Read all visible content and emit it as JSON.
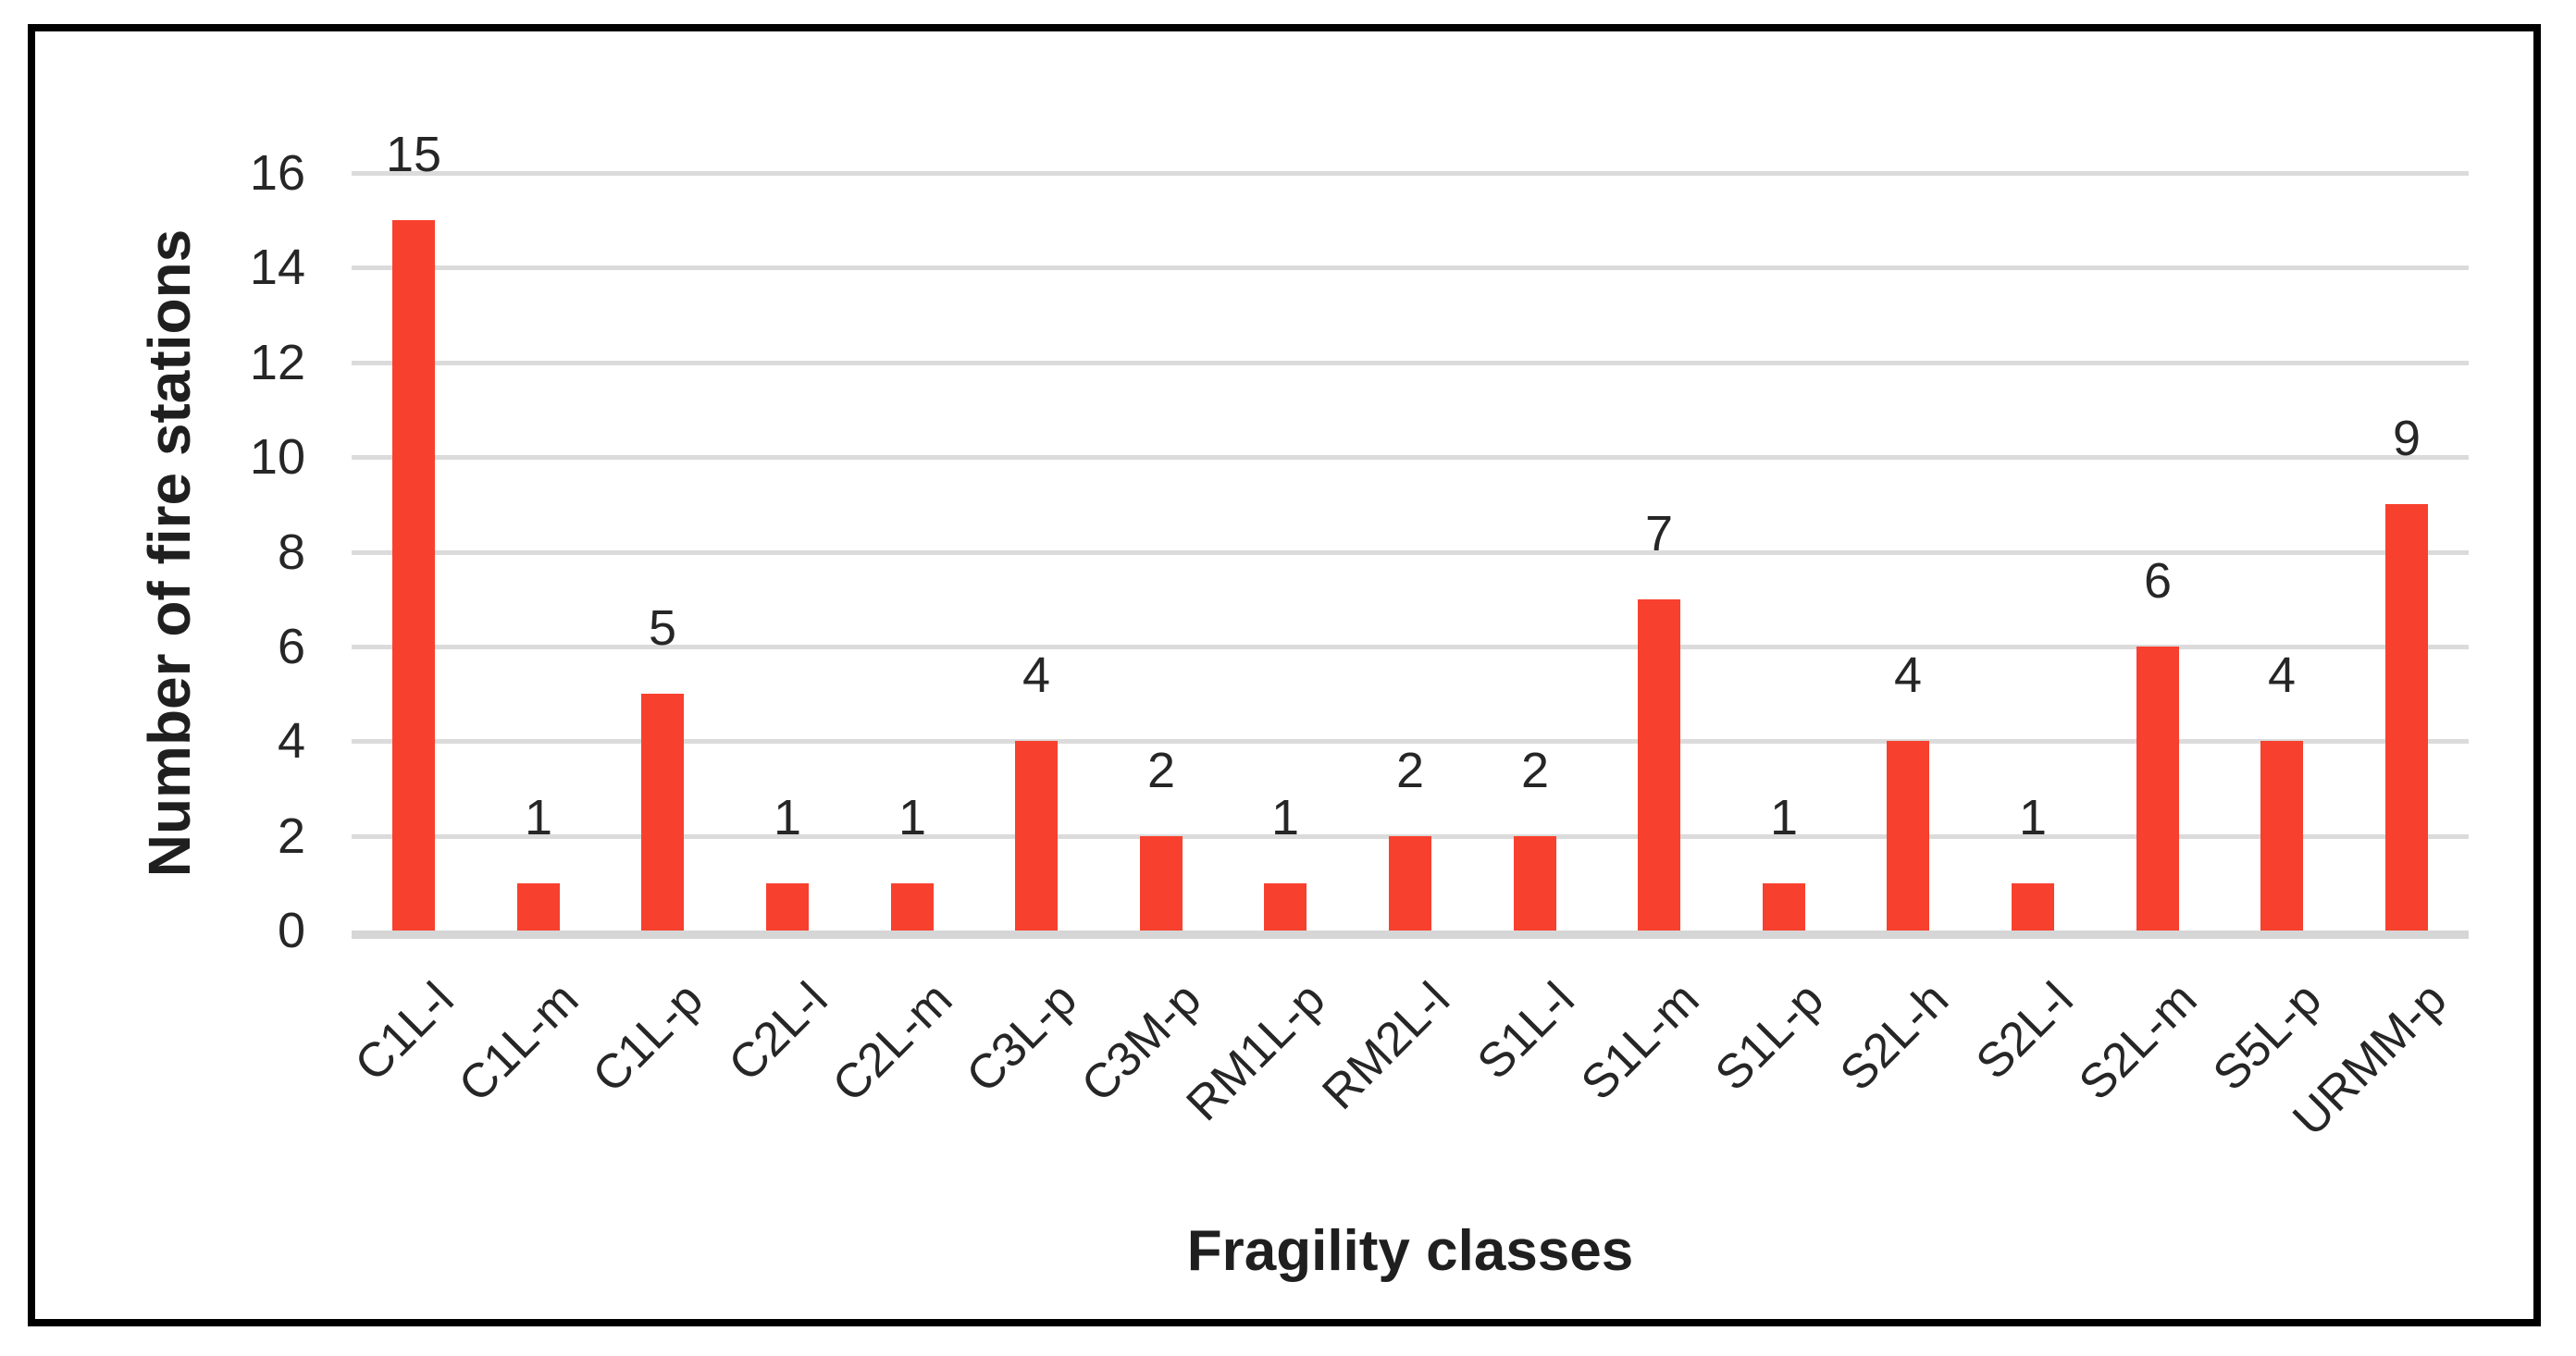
{
  "chart_data": {
    "type": "bar",
    "title": "",
    "xlabel": "Fragility classes",
    "ylabel": "Number of fire stations",
    "categories": [
      "C1L-l",
      "C1L-m",
      "C1L-p",
      "C2L-l",
      "C2L-m",
      "C3L-p",
      "C3M-p",
      "RM1L-p",
      "RM2L-l",
      "S1L-l",
      "S1L-m",
      "S1L-p",
      "S2L-h",
      "S2L-l",
      "S2L-m",
      "S5L-p",
      "URMM-p"
    ],
    "values": [
      15,
      1,
      5,
      1,
      1,
      4,
      2,
      1,
      2,
      2,
      7,
      1,
      4,
      1,
      6,
      4,
      9
    ],
    "data_labels": [
      15,
      1,
      5,
      1,
      1,
      4,
      2,
      1,
      2,
      2,
      7,
      1,
      4,
      1,
      6,
      4,
      9
    ],
    "ylim": [
      0,
      16
    ],
    "yticks": [
      0,
      2,
      4,
      6,
      8,
      10,
      12,
      14,
      16
    ],
    "grid": "horizontal",
    "legend_position": "none",
    "colors": {
      "bar": "#F8402E",
      "gridline": "#DBDBDB",
      "axis_line": "#D6D6D6",
      "tick_text": "#262626",
      "title_text": "#1F1F1F",
      "frame_border": "#000000",
      "background": "#FFFFFF"
    }
  }
}
